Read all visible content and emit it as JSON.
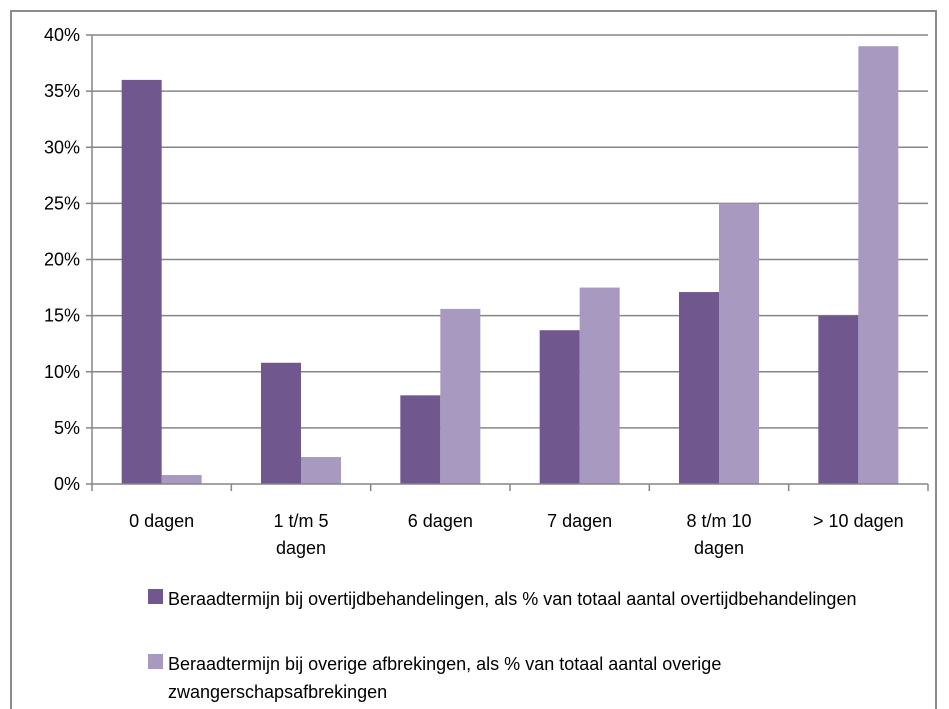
{
  "chart_data": {
    "type": "bar",
    "categories": [
      "0 dagen",
      "1 t/m 5\ndagen",
      "6 dagen",
      "7 dagen",
      "8 t/m 10\ndagen",
      "> 10 dagen"
    ],
    "series": [
      {
        "name": "Beraadtermijn bij overtijdbehandelingen, als % van totaal aantal overtijdbehandelingen",
        "values": [
          36,
          10.8,
          7.9,
          13.7,
          17.1,
          15
        ],
        "color": "#70588f"
      },
      {
        "name": "Beraadtermijn bij overige afbrekingen, als % van totaal aantal overige zwangerschapsafbrekingen",
        "values": [
          0.8,
          2.4,
          15.6,
          17.5,
          25,
          39
        ],
        "color": "#a899c0"
      }
    ],
    "yticks": [
      "0%",
      "5%",
      "10%",
      "15%",
      "20%",
      "25%",
      "30%",
      "35%",
      "40%"
    ],
    "ylim": [
      0,
      40
    ],
    "title": "",
    "xlabel": "",
    "ylabel": "",
    "grid": true,
    "legend_position": "bottom"
  }
}
